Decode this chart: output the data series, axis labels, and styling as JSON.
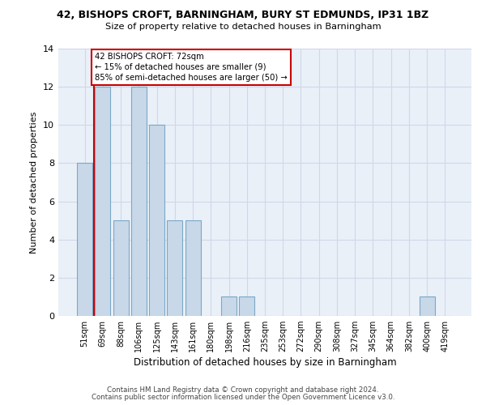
{
  "title_line1": "42, BISHOPS CROFT, BARNINGHAM, BURY ST EDMUNDS, IP31 1BZ",
  "title_line2": "Size of property relative to detached houses in Barningham",
  "xlabel": "Distribution of detached houses by size in Barningham",
  "ylabel": "Number of detached properties",
  "footer_line1": "Contains HM Land Registry data © Crown copyright and database right 2024.",
  "footer_line2": "Contains public sector information licensed under the Open Government Licence v3.0.",
  "bin_labels": [
    "51sqm",
    "69sqm",
    "88sqm",
    "106sqm",
    "125sqm",
    "143sqm",
    "161sqm",
    "180sqm",
    "198sqm",
    "216sqm",
    "235sqm",
    "253sqm",
    "272sqm",
    "290sqm",
    "308sqm",
    "327sqm",
    "345sqm",
    "364sqm",
    "382sqm",
    "400sqm",
    "419sqm"
  ],
  "values": [
    8,
    12,
    5,
    12,
    10,
    5,
    5,
    0,
    1,
    1,
    0,
    0,
    0,
    0,
    0,
    0,
    0,
    0,
    0,
    1,
    0
  ],
  "bar_color": "#c8d8e8",
  "bar_edge_color": "#7aa8c8",
  "reference_line_color": "#cc0000",
  "annotation_text_line1": "42 BISHOPS CROFT: 72sqm",
  "annotation_text_line2": "← 15% of detached houses are smaller (9)",
  "annotation_text_line3": "85% of semi-detached houses are larger (50) →",
  "annotation_box_color": "#cc0000",
  "ylim": [
    0,
    14
  ],
  "yticks": [
    0,
    2,
    4,
    6,
    8,
    10,
    12,
    14
  ],
  "grid_color": "#d0d8e8",
  "background_color": "#eaf0f8"
}
